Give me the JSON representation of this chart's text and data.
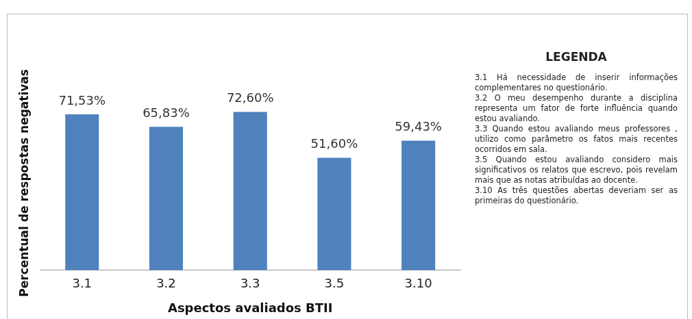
{
  "chart_data": {
    "type": "bar",
    "xlabel": "Aspectos avaliados BTII",
    "ylabel": "Percentual de respostas negativas",
    "categories": [
      "3.1",
      "3.2",
      "3.3",
      "3.5",
      "3.10"
    ],
    "values": [
      71.53,
      65.83,
      72.6,
      51.6,
      59.43
    ],
    "value_labels": [
      "71,53%",
      "65,83%",
      "72,60%",
      "51,60%",
      "59,43%"
    ],
    "color": "#4f81bd",
    "grid": false,
    "legend": false,
    "annotations": [
      "LEGENDA",
      "3.1 Há necessidade de inserir informações complementares no questionário.",
      "3.2 O meu desempenho durante a disciplina representa um fator de forte influência quando estou avaliando.",
      "3.3 Quando estou avaliando meus professores , utilizo como parâmetro os fatos mais recentes ocorridos em sala.",
      "3.5 Quando estou avaliando considero mais significativos os relatos que escrevo, pois revelam mais que as notas atribuídas ao docente.",
      "3.10 As três questões abertas deveriam ser as primeiras do questionário."
    ]
  }
}
